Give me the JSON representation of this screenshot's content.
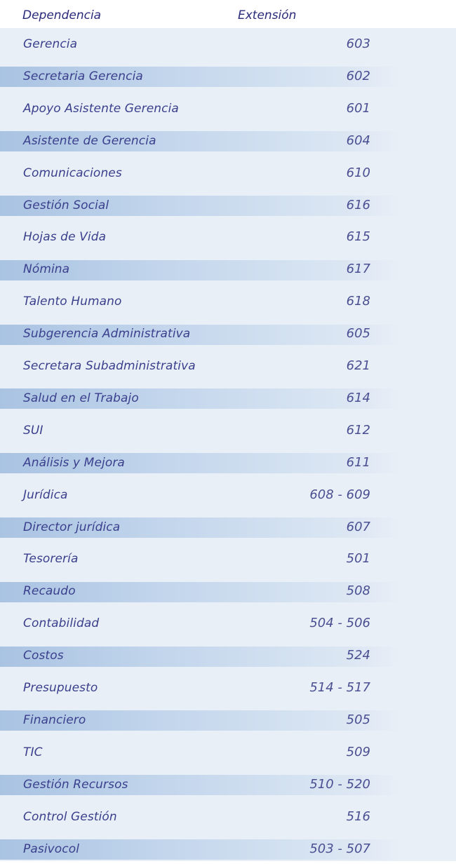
{
  "header": {
    "dependencia": "Dependencia",
    "extension": "Extensión"
  },
  "rows": [
    {
      "name": "Gerencia",
      "ext": "603"
    },
    {
      "name": "Secretaria Gerencia",
      "ext": "602"
    },
    {
      "name": "Apoyo Asistente Gerencia",
      "ext": "601"
    },
    {
      "name": "Asistente de Gerencia",
      "ext": "604"
    },
    {
      "name": "Comunicaciones",
      "ext": "610"
    },
    {
      "name": "Gestión Social",
      "ext": "616"
    },
    {
      "name": "Hojas de Vida",
      "ext": "615"
    },
    {
      "name": "Nómina",
      "ext": "617"
    },
    {
      "name": "Talento Humano",
      "ext": "618"
    },
    {
      "name": "Subgerencia Administrativa",
      "ext": "605"
    },
    {
      "name": "Secretara Subadministrativa",
      "ext": "621"
    },
    {
      "name": "Salud en el Trabajo",
      "ext": "614"
    },
    {
      "name": "SUI",
      "ext": "612"
    },
    {
      "name": "Análisis y Mejora",
      "ext": "611"
    },
    {
      "name": "Jurídica",
      "ext": "608 - 609"
    },
    {
      "name": "Director jurídica",
      "ext": "607"
    },
    {
      "name": "Tesorería",
      "ext": "501"
    },
    {
      "name": "Recaudo",
      "ext": "508"
    },
    {
      "name": "Contabilidad",
      "ext": "504 - 506"
    },
    {
      "name": "Costos",
      "ext": "524"
    },
    {
      "name": "Presupuesto",
      "ext": "514 - 517"
    },
    {
      "name": "Financiero",
      "ext": "505"
    },
    {
      "name": "TIC",
      "ext": "509"
    },
    {
      "name": "Gestión Recursos",
      "ext": "510 - 520"
    },
    {
      "name": "Control Gestión",
      "ext": "516"
    },
    {
      "name": "Pasivocol",
      "ext": "503 - 507"
    }
  ]
}
